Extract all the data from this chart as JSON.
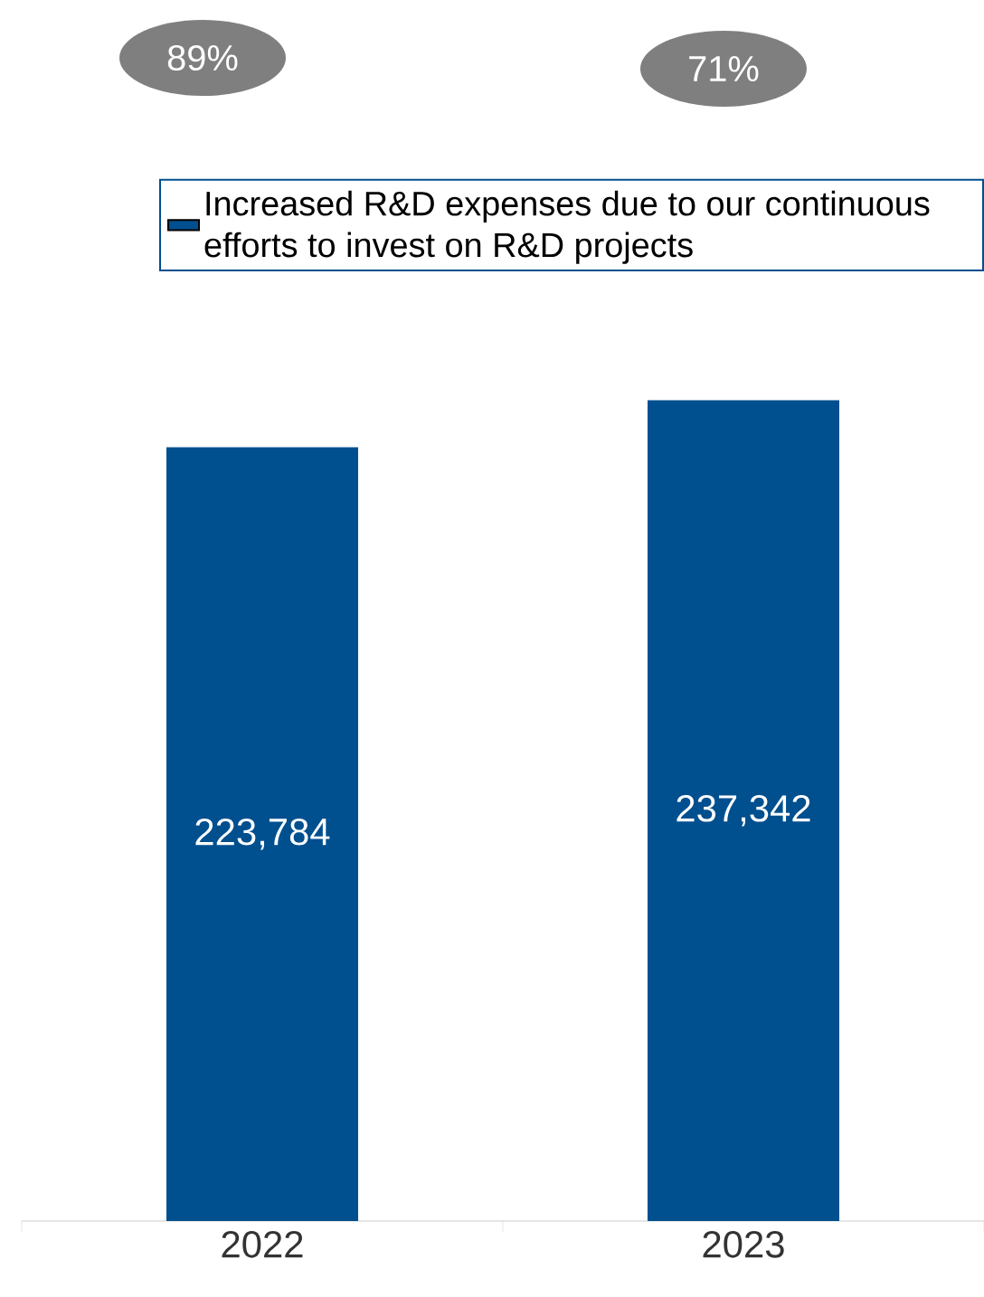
{
  "chart_data": {
    "type": "bar",
    "categories": [
      "2022",
      "2023"
    ],
    "series": [
      {
        "name": "Increased R&D expenses due to our continuous efforts to invest on R&D projects",
        "color": "#004f8f",
        "values": [
          223784,
          237342
        ],
        "value_labels": [
          "223,784",
          "237,342"
        ]
      }
    ],
    "tick_labels": "x",
    "legend": "top right",
    "annotations": [
      "89%",
      "71%"
    ]
  }
}
